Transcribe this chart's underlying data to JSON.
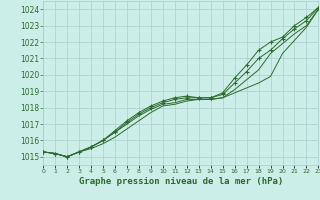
{
  "title": "Graphe pression niveau de la mer (hPa)",
  "xlabel_hours": [
    0,
    1,
    2,
    3,
    4,
    5,
    6,
    7,
    8,
    9,
    10,
    11,
    12,
    13,
    14,
    15,
    16,
    17,
    18,
    19,
    20,
    21,
    22,
    23
  ],
  "ylim": [
    1014.5,
    1024.5
  ],
  "yticks": [
    1015,
    1016,
    1017,
    1018,
    1019,
    1020,
    1021,
    1022,
    1023,
    1024
  ],
  "bg_color": "#cceee8",
  "grid_color": "#aacccc",
  "line_color": "#2d6a2d",
  "line1": [
    1015.3,
    1015.2,
    1015.0,
    1015.3,
    1015.5,
    1015.8,
    1016.2,
    1016.7,
    1017.2,
    1017.7,
    1018.1,
    1018.2,
    1018.4,
    1018.5,
    1018.5,
    1018.6,
    1018.9,
    1019.2,
    1019.5,
    1019.9,
    1021.3,
    1022.1,
    1022.9,
    1024.0
  ],
  "line2": [
    1015.3,
    1015.2,
    1015.0,
    1015.3,
    1015.6,
    1016.0,
    1016.5,
    1017.0,
    1017.5,
    1017.9,
    1018.2,
    1018.3,
    1018.5,
    1018.5,
    1018.5,
    1018.6,
    1019.1,
    1019.7,
    1020.3,
    1021.3,
    1021.9,
    1022.5,
    1023.0,
    1024.0
  ],
  "line3": [
    1015.3,
    1015.2,
    1015.0,
    1015.3,
    1015.6,
    1016.0,
    1016.5,
    1017.1,
    1017.6,
    1018.0,
    1018.3,
    1018.5,
    1018.6,
    1018.6,
    1018.6,
    1018.8,
    1019.5,
    1020.2,
    1021.0,
    1021.5,
    1022.2,
    1022.8,
    1023.3,
    1024.1
  ],
  "line4": [
    1015.3,
    1015.2,
    1015.0,
    1015.3,
    1015.6,
    1016.0,
    1016.6,
    1017.2,
    1017.7,
    1018.1,
    1018.4,
    1018.6,
    1018.7,
    1018.6,
    1018.6,
    1018.9,
    1019.8,
    1020.6,
    1021.5,
    1022.0,
    1022.3,
    1023.0,
    1023.5,
    1024.1
  ]
}
